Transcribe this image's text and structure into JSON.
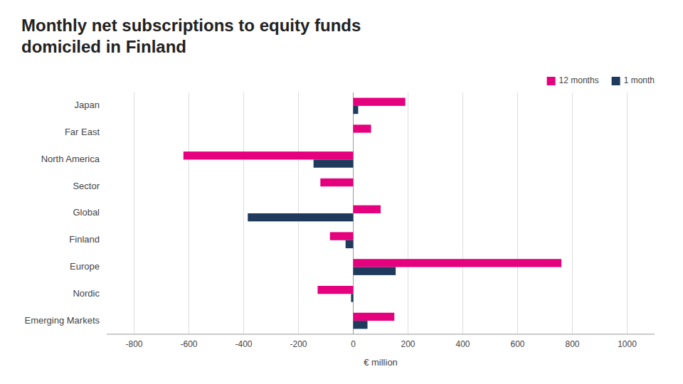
{
  "chart_data": {
    "type": "bar",
    "orientation": "horizontal",
    "title": "Monthly net subscriptions to equity funds\ndomiciled in Finland",
    "categories": [
      "Japan",
      "Far East",
      "North America",
      "Sector",
      "Global",
      "Finland",
      "Europe",
      "Nordic",
      "Emerging Markets"
    ],
    "series": [
      {
        "name": "12 months",
        "color": "#e5007d",
        "values": [
          190,
          65,
          -620,
          -120,
          100,
          -85,
          760,
          -130,
          150
        ]
      },
      {
        "name": "1 month",
        "color": "#1f3a5c",
        "values": [
          18,
          0,
          -145,
          0,
          -385,
          -28,
          155,
          -8,
          52
        ]
      }
    ],
    "xlim": [
      -900,
      1100
    ],
    "xticks": [
      -800,
      -600,
      -400,
      -200,
      0,
      200,
      400,
      600,
      800,
      1000
    ],
    "xlabel": "€ million",
    "grid": true,
    "legend": "upper right"
  }
}
